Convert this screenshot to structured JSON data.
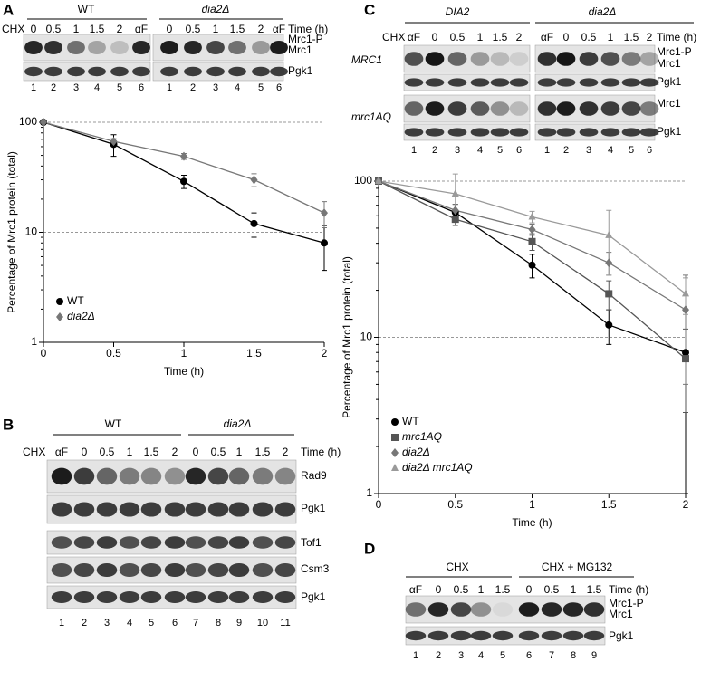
{
  "chart_data": [
    {
      "type": "line",
      "x_label": "Time (h)",
      "y_label": "Percentage of Mrc1 protein (total)",
      "xlim": [
        0,
        2
      ],
      "xticks": [
        0,
        0.5,
        1,
        1.5,
        2
      ],
      "ylim": [
        1,
        100
      ],
      "yticks": [
        1,
        10,
        100
      ],
      "log_y": true,
      "grid": true,
      "legend": "lower left",
      "series": [
        {
          "name": "WT",
          "color": "#000000",
          "marker": "circle",
          "x": [
            0,
            0.5,
            1,
            1.5,
            2
          ],
          "values": [
            100,
            63,
            29,
            12,
            8
          ],
          "errors": [
            null,
            14,
            4,
            3,
            3.5
          ]
        },
        {
          "name": "dia2Δ",
          "color": "#777777",
          "marker": "diamond",
          "x": [
            0,
            0.5,
            1,
            1.5,
            2
          ],
          "values": [
            100,
            67,
            49,
            30,
            15
          ],
          "errors": [
            null,
            4,
            3,
            4,
            4
          ]
        }
      ]
    },
    {
      "type": "line",
      "x_label": "Time (h)",
      "y_label": "Percentage of Mrc1 protein (total)",
      "xlim": [
        0,
        2
      ],
      "xticks": [
        0,
        0.5,
        1,
        1.5,
        2
      ],
      "ylim": [
        1,
        100
      ],
      "yticks": [
        1,
        10,
        100
      ],
      "log_y": true,
      "grid": true,
      "legend": "lower left",
      "series": [
        {
          "name": "WT",
          "color": "#000000",
          "marker": "circle",
          "x": [
            0,
            0.5,
            1,
            1.5,
            2
          ],
          "values": [
            100,
            63,
            29,
            12,
            8
          ],
          "errors": [
            null,
            8,
            5,
            3,
            7
          ]
        },
        {
          "name": "mrc1AQ",
          "color": "#555555",
          "marker": "square",
          "x": [
            0,
            0.5,
            1,
            1.5,
            2
          ],
          "values": [
            100,
            57,
            41,
            19,
            7.3
          ],
          "errors": [
            null,
            5,
            5,
            4,
            4
          ]
        },
        {
          "name": "dia2Δ",
          "color": "#777777",
          "marker": "diamond",
          "x": [
            0,
            0.5,
            1,
            1.5,
            2
          ],
          "values": [
            100,
            65,
            49,
            30,
            15
          ],
          "errors": [
            null,
            6,
            4,
            5,
            10
          ]
        },
        {
          "name": "dia2Δ mrc1AQ",
          "color": "#9a9a9a",
          "marker": "triangle",
          "x": [
            0,
            0.5,
            1,
            1.5,
            2
          ],
          "values": [
            100,
            83,
            59,
            45,
            19
          ],
          "errors": [
            null,
            28,
            5,
            20,
            5
          ]
        }
      ]
    }
  ],
  "blots": [
    {
      "label": "A",
      "groups": [
        "WT",
        "dia2Δ"
      ],
      "prefix": "CHX",
      "lanes": [
        "0",
        "0.5",
        "1",
        "1.5",
        "2",
        "αF",
        "0",
        "0.5",
        "1",
        "1.5",
        "2",
        "αF"
      ],
      "time_label": "Time (h)",
      "markers": [
        "Mrc1-P",
        "Mrc1",
        "Pgk1"
      ],
      "lane_numbers": [
        "1",
        "2",
        "3",
        "4",
        "5",
        "6",
        "1",
        "2",
        "3",
        "4",
        "5",
        "6"
      ]
    },
    {
      "label": "B",
      "groups": [
        "WT",
        "dia2Δ"
      ],
      "prefix": "CHX",
      "lanes": [
        "αF",
        "0",
        "0.5",
        "1",
        "1.5",
        "2",
        "0",
        "0.5",
        "1",
        "1.5",
        "2"
      ],
      "time_label": "Time (h)",
      "markers": [
        "Rad9",
        "Pgk1",
        "Tof1",
        "Csm3",
        "Pgk1"
      ],
      "lane_numbers": [
        "1",
        "2",
        "3",
        "4",
        "5",
        "6",
        "7",
        "8",
        "9",
        "10",
        "11"
      ]
    },
    {
      "label": "C",
      "groups": [
        "DIA2",
        "dia2Δ"
      ],
      "prefix": "CHX",
      "lanes": [
        "αF",
        "0",
        "0.5",
        "1",
        "1.5",
        "2",
        "αF",
        "0",
        "0.5",
        "1",
        "1.5",
        "2"
      ],
      "time_label": "Time (h)",
      "strains": [
        "MRC1",
        "mrc1AQ"
      ],
      "markers": [
        "Mrc1-P",
        "Mrc1",
        "Pgk1",
        "Mrc1",
        "Pgk1"
      ],
      "lane_numbers": [
        "1",
        "2",
        "3",
        "4",
        "5",
        "6",
        "1",
        "2",
        "3",
        "4",
        "5",
        "6"
      ]
    },
    {
      "label": "D",
      "groups": [
        "CHX",
        "CHX + MG132"
      ],
      "lanes": [
        "αF",
        "0",
        "0.5",
        "1",
        "1.5",
        "0",
        "0.5",
        "1",
        "1.5"
      ],
      "time_label": "Time (h)",
      "markers": [
        "Mrc1-P",
        "Mrc1",
        "Pgk1"
      ],
      "lane_numbers": [
        "1",
        "2",
        "3",
        "4",
        "5",
        "6",
        "7",
        "8",
        "9"
      ]
    }
  ]
}
